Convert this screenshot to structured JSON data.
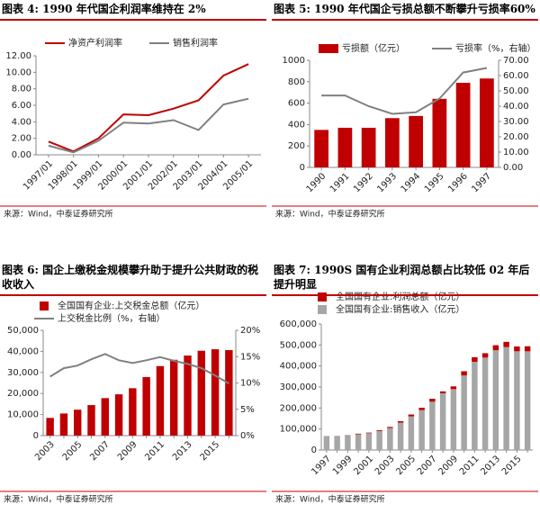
{
  "chart_data": [
    {
      "type": "line",
      "title": "图表 4: 1990 年代国企利润率维持在 2%",
      "categories": [
        "1997/01",
        "1998/01",
        "1999/01",
        "2000/01",
        "2001/01",
        "2002/01",
        "2003/01",
        "2004/01",
        "2005/01"
      ],
      "series": [
        {
          "name": "净资产利润率",
          "color": "#c00000",
          "kind": "line",
          "axis": "y",
          "values": [
            1.6,
            0.4,
            2.0,
            4.9,
            4.8,
            5.6,
            6.6,
            9.6,
            11.0
          ]
        },
        {
          "name": "销售利润率",
          "color": "#808080",
          "kind": "line",
          "axis": "y",
          "values": [
            1.1,
            0.3,
            1.7,
            3.9,
            3.8,
            4.2,
            3.0,
            6.1,
            6.8
          ]
        }
      ],
      "ylim": [
        0,
        12
      ],
      "yticks": [
        {
          "value": 0,
          "label": "0.00"
        },
        {
          "value": 2,
          "label": "2.00"
        },
        {
          "value": 4,
          "label": "4.00"
        },
        {
          "value": 6,
          "label": "6.00"
        },
        {
          "value": 8,
          "label": "8.00"
        },
        {
          "value": 10,
          "label": "10.00"
        },
        {
          "value": 12,
          "label": "12.00"
        }
      ],
      "source": "来源：Wind，中泰证券研究所"
    },
    {
      "type": "combo",
      "title": "图表 5: 1990 年代国企亏损总额不断攀升亏损率60%",
      "categories": [
        "1990",
        "1991",
        "1992",
        "1993",
        "1994",
        "1995",
        "1996",
        "1997"
      ],
      "series": [
        {
          "name": "亏损额（亿元）",
          "color": "#c00000",
          "kind": "bar",
          "axis": "y",
          "values": [
            350,
            370,
            370,
            460,
            480,
            640,
            790,
            830
          ]
        },
        {
          "name": "亏损率（%，右轴）",
          "color": "#808080",
          "kind": "line",
          "axis": "y2",
          "values": [
            47,
            47,
            40,
            35,
            36,
            45,
            62,
            65
          ]
        }
      ],
      "ylim": [
        0,
        1000
      ],
      "yticks": [
        0,
        200,
        400,
        600,
        800,
        1000
      ],
      "y2lim": [
        0,
        70
      ],
      "y2ticks": [
        {
          "value": 0,
          "label": "0.00"
        },
        {
          "value": 10,
          "label": "10.00"
        },
        {
          "value": 20,
          "label": "20.00"
        },
        {
          "value": 30,
          "label": "30.00"
        },
        {
          "value": 40,
          "label": "40.00"
        },
        {
          "value": 50,
          "label": "50.00"
        },
        {
          "value": 60,
          "label": "60.00"
        },
        {
          "value": 70,
          "label": "70.00"
        }
      ],
      "source": "来源：Wind，中泰证券研究所"
    },
    {
      "type": "combo",
      "title": "图表 6: 国企上缴税金规模攀升助于提升公共财政的税收收入",
      "categories": [
        "2003",
        null,
        "2005",
        null,
        "2007",
        null,
        "2009",
        null,
        "2011",
        null,
        "2013",
        null,
        "2015",
        null
      ],
      "series": [
        {
          "name": "全国国有企业:上交税金总额（亿元）",
          "color": "#c00000",
          "kind": "bar",
          "axis": "y",
          "values": [
            8400,
            10500,
            12300,
            14500,
            17800,
            19600,
            22500,
            27800,
            33000,
            36000,
            38000,
            40300,
            41000,
            40600
          ]
        },
        {
          "name": "上交税金比例（%，右轴）",
          "color": "#808080",
          "kind": "line",
          "axis": "y2",
          "values": [
            11.2,
            12.8,
            13.3,
            14.5,
            15.5,
            14.3,
            13.8,
            14.3,
            14.9,
            14.2,
            13.6,
            12.8,
            11.4,
            9.9
          ]
        }
      ],
      "ylim": [
        0,
        50000
      ],
      "yticks": [
        0,
        {
          "value": 10000,
          "label": "10,000"
        },
        {
          "value": 20000,
          "label": "20,000"
        },
        {
          "value": 30000,
          "label": "30,000"
        },
        {
          "value": 40000,
          "label": "40,000"
        },
        {
          "value": 50000,
          "label": "50,000"
        }
      ],
      "y2lim": [
        0,
        20
      ],
      "y2ticks": [
        {
          "value": 0,
          "label": "0%"
        },
        {
          "value": 5,
          "label": "5%"
        },
        {
          "value": 10,
          "label": "10%"
        },
        {
          "value": 15,
          "label": "15%"
        },
        {
          "value": 20,
          "label": "20%"
        }
      ],
      "source": "来源：Wind，中泰证券研究所"
    },
    {
      "type": "stacked-bar",
      "title": "图表 7: 1990S 国有企业利润总额占比较低 02 年后提升明显",
      "categories": [
        "1997",
        null,
        "1999",
        null,
        "2001",
        null,
        "2003",
        null,
        "2005",
        null,
        "2007",
        null,
        "2009",
        null,
        "2011",
        null,
        "2013",
        null,
        "2015",
        null
      ],
      "series": [
        {
          "name": "全国国有企业:利润总额（亿元）",
          "color": "#c00000",
          "kind": "bar",
          "axis": "y",
          "values": [
            800,
            200,
            1000,
            2800,
            2800,
            3800,
            4900,
            7000,
            9000,
            11000,
            14000,
            9000,
            13000,
            20000,
            22000,
            21000,
            24000,
            25000,
            23000,
            24000
          ]
        },
        {
          "name": "全国国有企业:销售收入（亿元）",
          "color": "#a6a6a6",
          "kind": "bar",
          "axis": "y",
          "values": [
            65000,
            67000,
            70000,
            75000,
            80000,
            90000,
            105000,
            130000,
            160000,
            190000,
            230000,
            270000,
            290000,
            355000,
            420000,
            440000,
            475000,
            490000,
            470000,
            470000
          ]
        }
      ],
      "ylim": [
        0,
        600000
      ],
      "yticks": [
        0,
        {
          "value": 100000,
          "label": "100,000"
        },
        {
          "value": 200000,
          "label": "200,000"
        },
        {
          "value": 300000,
          "label": "300,000"
        },
        {
          "value": 400000,
          "label": "400,000"
        },
        {
          "value": 500000,
          "label": "500,000"
        },
        {
          "value": 600000,
          "label": "600,000"
        }
      ],
      "source": "来源：Wind，中泰证券研究所"
    }
  ]
}
